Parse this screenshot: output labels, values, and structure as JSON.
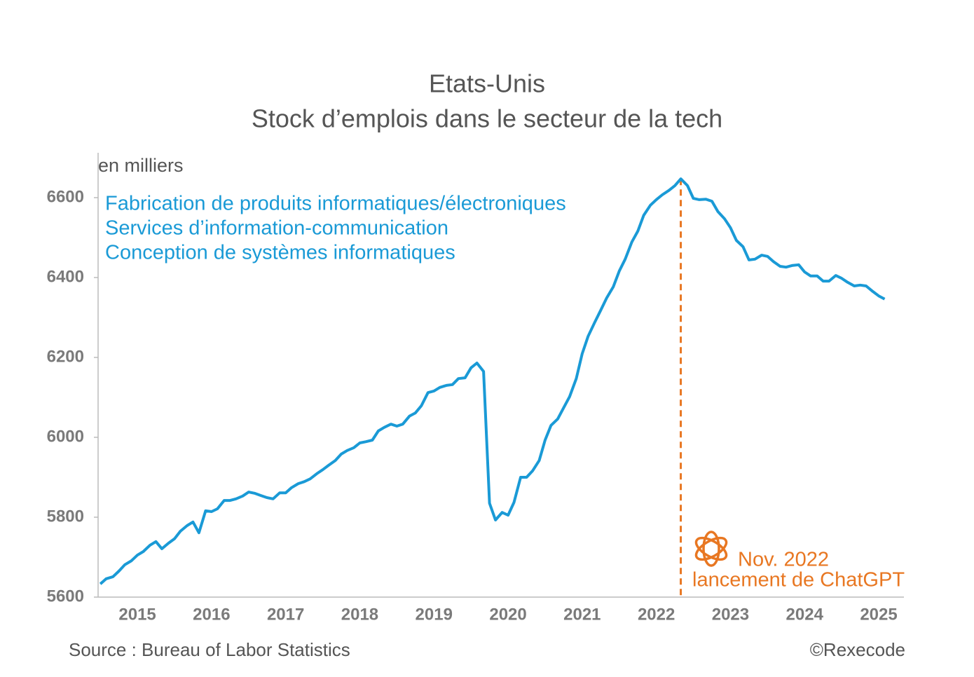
{
  "chart_data": {
    "type": "line",
    "title": [
      "Etats-Unis",
      "Stock d’emplois dans le secteur de la tech"
    ],
    "unit_label": "en milliers",
    "description": [
      "Fabrication de produits informatiques/électroniques",
      "Services d’information-communication",
      "Conception de systèmes informatiques"
    ],
    "source": "Source : Bureau of Labor Statistics",
    "credit": "©Rexecode",
    "x": [
      2015.0,
      2015.08,
      2015.17,
      2015.25,
      2015.33,
      2015.42,
      2015.5,
      2015.58,
      2015.67,
      2015.75,
      2015.83,
      2015.92,
      2016.0,
      2016.08,
      2016.17,
      2016.25,
      2016.33,
      2016.42,
      2016.5,
      2016.58,
      2016.67,
      2016.75,
      2016.83,
      2016.92,
      2017.0,
      2017.08,
      2017.17,
      2017.25,
      2017.33,
      2017.42,
      2017.5,
      2017.58,
      2017.67,
      2017.75,
      2017.83,
      2017.92,
      2018.0,
      2018.08,
      2018.17,
      2018.25,
      2018.33,
      2018.42,
      2018.5,
      2018.58,
      2018.67,
      2018.75,
      2018.83,
      2018.92,
      2019.0,
      2019.08,
      2019.17,
      2019.25,
      2019.33,
      2019.42,
      2019.5,
      2019.58,
      2019.67,
      2019.75,
      2019.83,
      2019.92,
      2020.0,
      2020.08,
      2020.17,
      2020.25,
      2020.33,
      2020.42,
      2020.5,
      2020.58,
      2020.67,
      2020.75,
      2020.83,
      2020.92,
      2021.0,
      2021.08,
      2021.17,
      2021.25,
      2021.33,
      2021.42,
      2021.5,
      2021.58,
      2021.67,
      2021.75,
      2021.83,
      2021.92,
      2022.0,
      2022.08,
      2022.17,
      2022.25,
      2022.33,
      2022.42,
      2022.5,
      2022.58,
      2022.67,
      2022.75,
      2022.83,
      2022.92,
      2023.0,
      2023.08,
      2023.17,
      2023.25,
      2023.33,
      2023.42,
      2023.5,
      2023.58,
      2023.67,
      2023.75,
      2023.83,
      2023.92,
      2024.0,
      2024.08,
      2024.17,
      2024.25,
      2024.33,
      2024.42,
      2024.5,
      2024.58,
      2024.67,
      2024.75,
      2024.83,
      2024.92,
      2025.0,
      2025.08,
      2025.17,
      2025.25,
      2025.33,
      2025.42,
      2025.5,
      2025.58
    ],
    "series": [
      {
        "color": "#1a9ad6",
        "values": [
          5633,
          5646,
          5651,
          5665,
          5681,
          5691,
          5705,
          5714,
          5730,
          5739,
          5721,
          5735,
          5746,
          5765,
          5779,
          5788,
          5761,
          5816,
          5814,
          5821,
          5842,
          5842,
          5846,
          5853,
          5863,
          5860,
          5854,
          5849,
          5846,
          5861,
          5861,
          5874,
          5884,
          5889,
          5896,
          5909,
          5919,
          5930,
          5942,
          5958,
          5967,
          5974,
          5986,
          5989,
          5993,
          6016,
          6025,
          6033,
          6028,
          6033,
          6053,
          6061,
          6079,
          6112,
          6116,
          6125,
          6130,
          6132,
          6147,
          6149,
          6174,
          6186,
          6165,
          5835,
          5793,
          5812,
          5805,
          5837,
          5900,
          5900,
          5916,
          5942,
          5993,
          6030,
          6046,
          6074,
          6102,
          6147,
          6209,
          6253,
          6288,
          6318,
          6349,
          6377,
          6416,
          6446,
          6489,
          6516,
          6556,
          6581,
          6595,
          6607,
          6618,
          6630,
          6647,
          6630,
          6598,
          6595,
          6596,
          6591,
          6565,
          6547,
          6525,
          6493,
          6477,
          6444,
          6446,
          6456,
          6453,
          6440,
          6428,
          6426,
          6430,
          6432,
          6414,
          6404,
          6404,
          6391,
          6391,
          6405,
          6398,
          6388,
          6379,
          6381,
          6379,
          6365,
          6354,
          6346
        ]
      }
    ],
    "xlim": [
      2014.97,
      2025.84
    ],
    "xticks": [
      {
        "value": 2015.5,
        "label": "2015"
      },
      {
        "value": 2016.5,
        "label": "2016"
      },
      {
        "value": 2017.5,
        "label": "2017"
      },
      {
        "value": 2018.5,
        "label": "2018"
      },
      {
        "value": 2019.5,
        "label": "2019"
      },
      {
        "value": 2020.5,
        "label": "2020"
      },
      {
        "value": 2021.5,
        "label": "2021"
      },
      {
        "value": 2022.5,
        "label": "2022"
      },
      {
        "value": 2023.5,
        "label": "2023"
      },
      {
        "value": 2024.5,
        "label": "2024"
      },
      {
        "value": 2025.5,
        "label": "2025"
      }
    ],
    "ylim": [
      5600,
      6700
    ],
    "yticks": [
      5600,
      5800,
      6000,
      6200,
      6400,
      6600
    ],
    "annotation": {
      "x": 2022.83,
      "label": "Nov. 2022",
      "text": "lancement de ChatGPT",
      "color": "#e87722"
    }
  }
}
